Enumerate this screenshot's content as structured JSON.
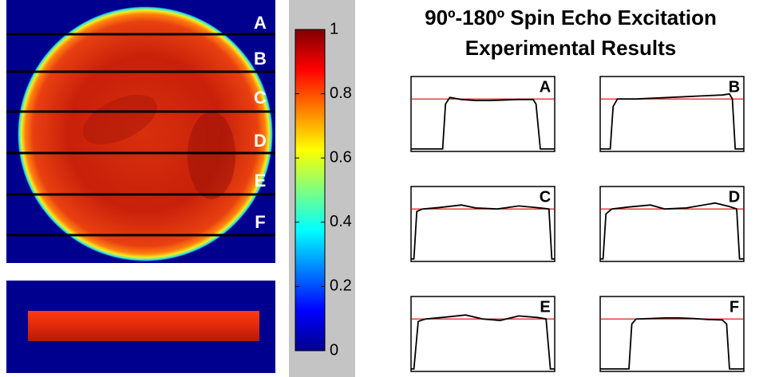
{
  "chart_data": {
    "type": "line",
    "title": [
      "90º-180º Spin Echo Excitation",
      "Experimental Results"
    ],
    "xlim": [
      0,
      1
    ],
    "ylim": [
      -0.05,
      1.45
    ],
    "reference_line": {
      "value": 1,
      "color": "#e00000"
    },
    "series": [
      {
        "name": "A",
        "color": "#000000",
        "x": [
          0,
          0.22,
          0.24,
          0.27,
          0.35,
          0.45,
          0.55,
          0.65,
          0.75,
          0.85,
          0.87,
          0.9,
          1
        ],
        "values": [
          0,
          0,
          0.9,
          1.03,
          0.99,
          0.97,
          0.97,
          0.98,
          0.99,
          0.99,
          0.9,
          0,
          0
        ]
      },
      {
        "name": "B",
        "color": "#000000",
        "x": [
          0,
          0.07,
          0.09,
          0.12,
          0.25,
          0.4,
          0.55,
          0.7,
          0.85,
          0.9,
          0.92,
          0.94,
          1
        ],
        "values": [
          0,
          0,
          0.85,
          1.0,
          1.0,
          1.02,
          1.04,
          1.06,
          1.08,
          1.1,
          1.0,
          0,
          0
        ]
      },
      {
        "name": "C",
        "color": "#000000",
        "x": [
          0,
          0.02,
          0.04,
          0.08,
          0.2,
          0.35,
          0.45,
          0.6,
          0.75,
          0.9,
          0.96,
          0.98,
          1
        ],
        "values": [
          0,
          0,
          0.95,
          1.0,
          1.03,
          1.08,
          1.02,
          1.0,
          1.06,
          1.02,
          1.0,
          0,
          0
        ]
      },
      {
        "name": "D",
        "color": "#000000",
        "x": [
          0,
          0.02,
          0.04,
          0.08,
          0.2,
          0.35,
          0.45,
          0.6,
          0.8,
          0.9,
          0.95,
          0.97,
          1
        ],
        "values": [
          0,
          0,
          0.9,
          1.0,
          1.04,
          1.08,
          1.0,
          1.02,
          1.12,
          1.05,
          1.0,
          0,
          0
        ]
      },
      {
        "name": "E",
        "color": "#000000",
        "x": [
          0,
          0.02,
          0.05,
          0.1,
          0.25,
          0.38,
          0.5,
          0.62,
          0.75,
          0.88,
          0.94,
          0.97,
          1
        ],
        "values": [
          0,
          0,
          0.95,
          1.0,
          1.04,
          1.08,
          1.0,
          0.97,
          1.06,
          1.03,
          1.0,
          0,
          0
        ]
      },
      {
        "name": "F",
        "color": "#000000",
        "x": [
          0,
          0.2,
          0.22,
          0.25,
          0.35,
          0.45,
          0.55,
          0.65,
          0.75,
          0.85,
          0.88,
          0.9,
          1
        ],
        "values": [
          0,
          0,
          0.9,
          1.0,
          1.01,
          1.02,
          1.02,
          1.01,
          0.99,
          0.98,
          0.9,
          0,
          0
        ]
      }
    ],
    "colorbar": {
      "lim": [
        0,
        1
      ],
      "ticks": [
        0,
        0.2,
        0.4,
        0.6,
        0.8,
        1
      ]
    }
  }
}
